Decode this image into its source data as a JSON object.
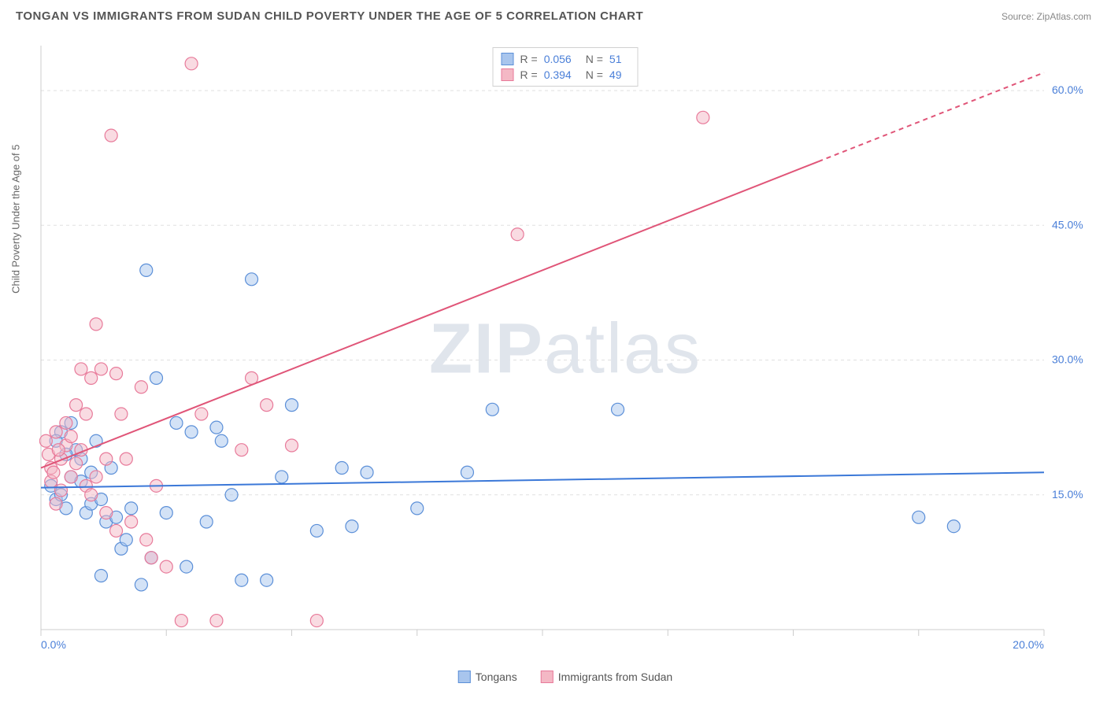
{
  "header": {
    "title": "TONGAN VS IMMIGRANTS FROM SUDAN CHILD POVERTY UNDER THE AGE OF 5 CORRELATION CHART",
    "source": "Source: ZipAtlas.com"
  },
  "chart": {
    "type": "scatter",
    "ylabel": "Child Poverty Under the Age of 5",
    "background_color": "#ffffff",
    "grid_color": "#e0e0e0",
    "axis_color": "#cccccc",
    "tick_color": "#cccccc",
    "label_color": "#4a7fd8",
    "watermark": "ZIPatlas",
    "xlim": [
      0,
      20
    ],
    "ylim": [
      0,
      65
    ],
    "xticks": [
      0,
      2.5,
      5,
      7.5,
      10,
      12.5,
      15,
      17.5,
      20
    ],
    "xtick_labels": {
      "0": "0.0%",
      "20": "20.0%"
    },
    "yticks": [
      15,
      30,
      45,
      60
    ],
    "ytick_labels": {
      "15": "15.0%",
      "30": "30.0%",
      "45": "45.0%",
      "60": "60.0%"
    },
    "series": [
      {
        "name": "Tongans",
        "color_fill": "#a8c5ed",
        "color_stroke": "#5b8fd8",
        "fill_opacity": 0.5,
        "marker_radius": 8,
        "r": "0.056",
        "n": "51",
        "trend": {
          "x1": 0,
          "y1": 15.8,
          "x2": 20,
          "y2": 17.5,
          "dash_from_x": null,
          "color": "#3b78d8",
          "width": 2
        },
        "points": [
          [
            0.2,
            16
          ],
          [
            0.3,
            14.5
          ],
          [
            0.4,
            15
          ],
          [
            0.5,
            13.5
          ],
          [
            0.6,
            17
          ],
          [
            0.7,
            20
          ],
          [
            0.8,
            19
          ],
          [
            0.9,
            13
          ],
          [
            1.0,
            14
          ],
          [
            1.1,
            21
          ],
          [
            1.2,
            6
          ],
          [
            1.3,
            12
          ],
          [
            1.5,
            12.5
          ],
          [
            1.6,
            9
          ],
          [
            1.8,
            13.5
          ],
          [
            2.0,
            5
          ],
          [
            2.1,
            40
          ],
          [
            2.2,
            8
          ],
          [
            2.5,
            13
          ],
          [
            2.7,
            23
          ],
          [
            3.0,
            22
          ],
          [
            3.3,
            12
          ],
          [
            3.5,
            22.5
          ],
          [
            3.6,
            21
          ],
          [
            4.0,
            5.5
          ],
          [
            4.2,
            39
          ],
          [
            4.5,
            5.5
          ],
          [
            4.8,
            17
          ],
          [
            5.0,
            25
          ],
          [
            5.5,
            11
          ],
          [
            6.0,
            18
          ],
          [
            6.2,
            11.5
          ],
          [
            6.5,
            17.5
          ],
          [
            7.5,
            13.5
          ],
          [
            8.5,
            17.5
          ],
          [
            9.0,
            24.5
          ],
          [
            11.5,
            24.5
          ],
          [
            17.5,
            12.5
          ],
          [
            18.2,
            11.5
          ],
          [
            0.4,
            22
          ],
          [
            0.6,
            23
          ],
          [
            0.8,
            16.5
          ],
          [
            1.0,
            17.5
          ],
          [
            1.2,
            14.5
          ],
          [
            1.4,
            18
          ],
          [
            0.3,
            21
          ],
          [
            0.5,
            19.5
          ],
          [
            2.3,
            28
          ],
          [
            3.8,
            15
          ],
          [
            1.7,
            10
          ],
          [
            2.9,
            7
          ]
        ]
      },
      {
        "name": "Immigrants from Sudan",
        "color_fill": "#f4b8c5",
        "color_stroke": "#e87a9a",
        "fill_opacity": 0.5,
        "marker_radius": 8,
        "r": "0.394",
        "n": "49",
        "trend": {
          "x1": 0,
          "y1": 18,
          "x2": 20,
          "y2": 62,
          "dash_from_x": 15.5,
          "color": "#e05578",
          "width": 2
        },
        "points": [
          [
            0.1,
            21
          ],
          [
            0.2,
            18
          ],
          [
            0.3,
            22
          ],
          [
            0.4,
            19
          ],
          [
            0.5,
            20.5
          ],
          [
            0.6,
            17
          ],
          [
            0.7,
            25
          ],
          [
            0.8,
            29
          ],
          [
            0.9,
            16
          ],
          [
            1.0,
            28
          ],
          [
            1.1,
            34
          ],
          [
            1.2,
            29
          ],
          [
            1.3,
            19
          ],
          [
            1.4,
            55
          ],
          [
            1.5,
            28.5
          ],
          [
            1.6,
            24
          ],
          [
            1.8,
            12
          ],
          [
            2.0,
            27
          ],
          [
            2.1,
            10
          ],
          [
            2.3,
            16
          ],
          [
            2.5,
            7
          ],
          [
            2.8,
            1
          ],
          [
            3.0,
            63
          ],
          [
            3.2,
            24
          ],
          [
            3.5,
            1
          ],
          [
            4.0,
            20
          ],
          [
            4.2,
            28
          ],
          [
            4.5,
            25
          ],
          [
            5.0,
            20.5
          ],
          [
            5.5,
            1
          ],
          [
            9.5,
            44
          ],
          [
            13.2,
            57
          ],
          [
            0.2,
            16.5
          ],
          [
            0.3,
            14
          ],
          [
            0.4,
            15.5
          ],
          [
            0.5,
            23
          ],
          [
            0.6,
            21.5
          ],
          [
            0.7,
            18.5
          ],
          [
            0.8,
            20
          ],
          [
            0.9,
            24
          ],
          [
            1.0,
            15
          ],
          [
            1.1,
            17
          ],
          [
            1.3,
            13
          ],
          [
            1.5,
            11
          ],
          [
            1.7,
            19
          ],
          [
            2.2,
            8
          ],
          [
            0.15,
            19.5
          ],
          [
            0.25,
            17.5
          ],
          [
            0.35,
            20
          ]
        ]
      }
    ],
    "legend_bottom": [
      {
        "label": "Tongans",
        "fill": "#a8c5ed",
        "stroke": "#5b8fd8"
      },
      {
        "label": "Immigrants from Sudan",
        "fill": "#f4b8c5",
        "stroke": "#e87a9a"
      }
    ]
  }
}
